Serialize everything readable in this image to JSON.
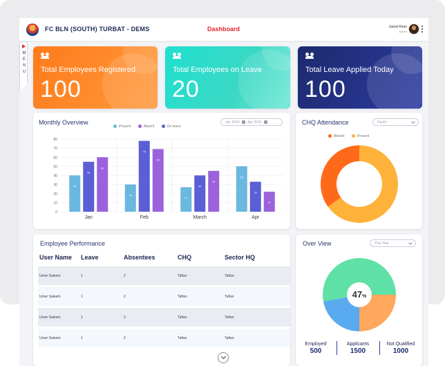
{
  "header": {
    "app_title": "FC BLN (SOUTH) TURBAT - DEMS",
    "page_title": "Dashboard",
    "user_name": "Jamal Khan",
    "user_role": "Admin"
  },
  "menu": {
    "letters": [
      "M",
      "E",
      "N",
      "U"
    ]
  },
  "stats": [
    {
      "label": "Total Employees Registered",
      "value": "100",
      "color": "#ff7a1a"
    },
    {
      "label": "Total Employees on Leave",
      "value": "20",
      "color": "#1fe0cf"
    },
    {
      "label": "Total Leave Applied Today",
      "value": "100",
      "color": "#1d2a6e"
    }
  ],
  "monthly": {
    "title": "Monthly Overview",
    "date_from": "Jan 2019",
    "date_to": "Apr 2019",
    "legend": [
      "Present",
      "Absent",
      "On leave"
    ]
  },
  "chart_data": {
    "type": "bar",
    "categories": [
      "Jan",
      "Feb",
      "March",
      "Apr"
    ],
    "series": [
      {
        "name": "Present",
        "values": [
          40,
          30,
          27,
          50
        ],
        "color": "#6ab7e0"
      },
      {
        "name": "Absent",
        "values": [
          55,
          78,
          40,
          33
        ],
        "color": "#5a5fd6"
      },
      {
        "name": "On leave",
        "values": [
          60,
          69,
          45,
          22
        ],
        "color": "#9b62dc"
      }
    ],
    "ylim": [
      0,
      80
    ],
    "yticks": [
      0,
      10,
      20,
      30,
      40,
      50,
      60,
      70,
      80
    ],
    "grid": true
  },
  "attendance": {
    "title": "CHQ Attendance",
    "dropdown": "Dasht",
    "legend": [
      "Absent",
      "Present"
    ],
    "colors": [
      "#ff6a1a",
      "#ffb23a"
    ],
    "absent_fraction": 0.35
  },
  "performance": {
    "title": "Employee Performance",
    "columns": [
      "User Name",
      "Leave",
      "Absentees",
      "CHQ",
      "Sector HQ"
    ],
    "rows": [
      [
        "Umer Saleem",
        "1",
        "2",
        "Taftan",
        "Taftan"
      ],
      [
        "Umer Saleem",
        "1",
        "2",
        "Taftan",
        "Taftan"
      ],
      [
        "Umer Saleem",
        "1",
        "2",
        "Taftan",
        "Taftan"
      ],
      [
        "Umer Saleem",
        "1",
        "2",
        "Taftan",
        "Taftan"
      ]
    ]
  },
  "overview": {
    "title": "Over View",
    "dropdown": "This Year",
    "center": "47",
    "unit": "%",
    "slices": [
      {
        "value": 0.25,
        "color": "#ffa75c"
      },
      {
        "value": 0.22,
        "color": "#5aaaf0"
      },
      {
        "value": 0.53,
        "color": "#5fe0a6"
      }
    ],
    "stats": [
      {
        "label": "Employed",
        "value": "500"
      },
      {
        "label": "Applicants",
        "value": "1500"
      },
      {
        "label": "Not Qualified",
        "value": "1000"
      }
    ]
  }
}
